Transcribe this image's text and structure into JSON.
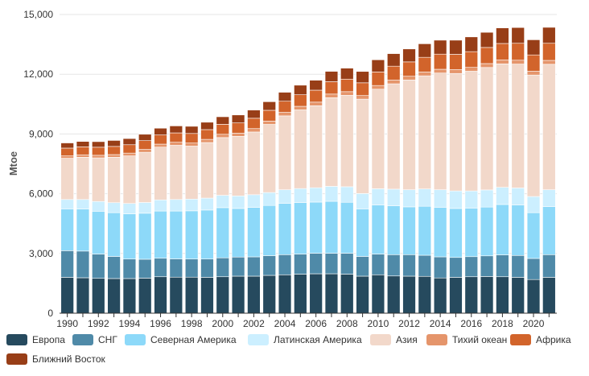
{
  "chart_data": {
    "type": "bar",
    "stacked": true,
    "ylabel": "Mtoe",
    "ylim": [
      0,
      15000
    ],
    "yticks": [
      0,
      3000,
      6000,
      9000,
      12000,
      15000
    ],
    "ytick_labels": [
      "0",
      "3,000",
      "6,000",
      "9,000",
      "12,000",
      "15,000"
    ],
    "grid": true,
    "categories": [
      "1990",
      "1991",
      "1992",
      "1993",
      "1994",
      "1995",
      "1996",
      "1997",
      "1998",
      "1999",
      "2000",
      "2001",
      "2002",
      "2003",
      "2004",
      "2005",
      "2006",
      "2007",
      "2008",
      "2009",
      "2010",
      "2011",
      "2012",
      "2013",
      "2014",
      "2015",
      "2016",
      "2017",
      "2018",
      "2019",
      "2020",
      "2021"
    ],
    "xtick_labels": [
      "1990",
      "",
      "1992",
      "",
      "1994",
      "",
      "1996",
      "",
      "1998",
      "",
      "2000",
      "",
      "2002",
      "",
      "2004",
      "",
      "2006",
      "",
      "2008",
      "",
      "2010",
      "",
      "2012",
      "",
      "2014",
      "",
      "2016",
      "",
      "2018",
      "",
      "2020",
      ""
    ],
    "series": [
      {
        "name": "Европа",
        "color": "#264a5e",
        "values": [
          1800,
          1780,
          1750,
          1740,
          1740,
          1760,
          1830,
          1810,
          1810,
          1800,
          1830,
          1860,
          1860,
          1900,
          1930,
          1960,
          1980,
          1980,
          1960,
          1860,
          1930,
          1870,
          1860,
          1850,
          1770,
          1800,
          1830,
          1840,
          1830,
          1800,
          1690,
          1800
        ]
      },
      {
        "name": "СНГ",
        "color": "#4f8aa8",
        "values": [
          1340,
          1340,
          1220,
          1110,
          980,
          950,
          930,
          920,
          910,
          920,
          950,
          960,
          970,
          990,
          1010,
          1010,
          1030,
          1030,
          1050,
          990,
          1040,
          1070,
          1080,
          1060,
          1060,
          1000,
          1010,
          1040,
          1100,
          1100,
          1060,
          1140
        ]
      },
      {
        "name": "Северная Америка",
        "color": "#8dd9f9",
        "values": [
          2100,
          2110,
          2150,
          2200,
          2270,
          2310,
          2370,
          2400,
          2420,
          2460,
          2520,
          2440,
          2480,
          2520,
          2580,
          2590,
          2570,
          2610,
          2560,
          2390,
          2460,
          2450,
          2400,
          2460,
          2490,
          2460,
          2440,
          2450,
          2530,
          2530,
          2300,
          2410
        ]
      },
      {
        "name": "Латинская Америка",
        "color": "#ccefff",
        "values": [
          470,
          480,
          490,
          500,
          520,
          540,
          560,
          580,
          590,
          600,
          620,
          630,
          640,
          650,
          680,
          700,
          720,
          750,
          780,
          770,
          820,
          840,
          860,
          870,
          880,
          880,
          860,
          860,
          860,
          860,
          810,
          850
        ]
      },
      {
        "name": "Азия",
        "color": "#f2d8ca",
        "values": [
          2070,
          2120,
          2190,
          2280,
          2390,
          2520,
          2650,
          2720,
          2660,
          2790,
          2900,
          2990,
          3150,
          3420,
          3710,
          3950,
          4120,
          4450,
          4590,
          4740,
          5000,
          5290,
          5510,
          5680,
          5860,
          5900,
          6010,
          6150,
          6200,
          6220,
          6100,
          6300
        ]
      },
      {
        "name": "Тихий океан",
        "color": "#e5956b",
        "values": [
          120,
          125,
          130,
          135,
          140,
          145,
          150,
          155,
          155,
          160,
          165,
          165,
          170,
          170,
          175,
          180,
          180,
          185,
          185,
          180,
          185,
          185,
          190,
          190,
          190,
          190,
          195,
          195,
          195,
          195,
          190,
          195
        ]
      },
      {
        "name": "Африка",
        "color": "#d2642b",
        "values": [
          390,
          400,
          405,
          410,
          420,
          440,
          460,
          470,
          480,
          490,
          500,
          510,
          520,
          540,
          560,
          580,
          600,
          620,
          630,
          640,
          680,
          700,
          720,
          740,
          760,
          770,
          790,
          810,
          830,
          850,
          820,
          860
        ]
      },
      {
        "name": "Ближний Восток",
        "color": "#983e17",
        "values": [
          260,
          270,
          280,
          300,
          310,
          320,
          340,
          350,
          360,
          370,
          380,
          400,
          410,
          430,
          450,
          480,
          500,
          520,
          550,
          570,
          610,
          630,
          650,
          680,
          700,
          710,
          740,
          760,
          780,
          790,
          760,
          800
        ]
      }
    ]
  }
}
